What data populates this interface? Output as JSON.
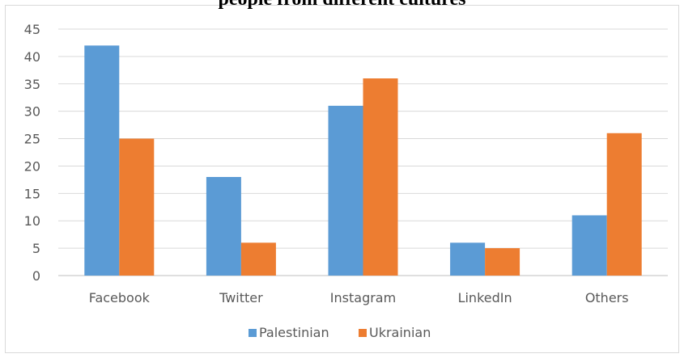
{
  "chart_data": {
    "type": "bar",
    "title": "people from different cultures",
    "xlabel": "",
    "ylabel": "",
    "categories": [
      "Facebook",
      "Twitter",
      "Instagram",
      "LinkedIn",
      "Others"
    ],
    "series": [
      {
        "name": "Palestinian",
        "color": "#5b9bd5",
        "values": [
          42,
          18,
          31,
          6,
          11
        ]
      },
      {
        "name": "Ukrainian",
        "color": "#ed7d31",
        "values": [
          25,
          6,
          36,
          5,
          26
        ]
      }
    ],
    "ylim": [
      0,
      45
    ],
    "yticks": [
      0,
      5,
      10,
      15,
      20,
      25,
      30,
      35,
      40,
      45
    ],
    "grid": true,
    "legend_position": "bottom"
  }
}
